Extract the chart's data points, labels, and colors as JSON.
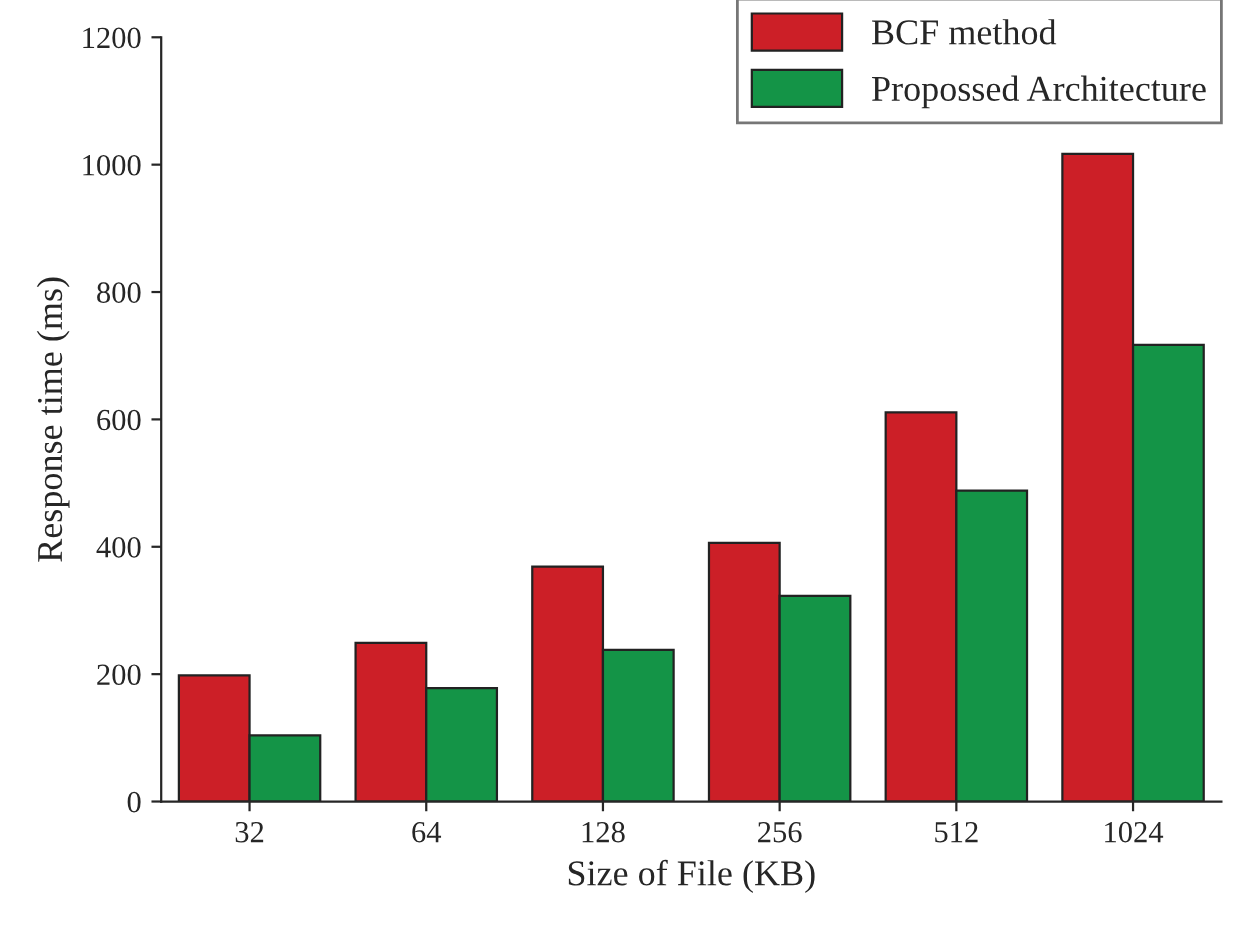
{
  "chart_data": {
    "type": "bar",
    "xlabel": "Size of File (KB)",
    "ylabel": "Response time (ms)",
    "categories": [
      "32",
      "64",
      "128",
      "256",
      "512",
      "1024"
    ],
    "series": [
      {
        "name": "BCF method",
        "color": "#cc1f27",
        "values": [
          198,
          249,
          369,
          406,
          611,
          1017
        ]
      },
      {
        "name": "Propossed Architecture",
        "color": "#149447",
        "values": [
          104,
          178,
          238,
          323,
          488,
          717
        ]
      }
    ],
    "ylim": [
      0,
      1200
    ],
    "yticks": [
      0,
      200,
      400,
      600,
      800,
      1000,
      1200
    ],
    "grid": false,
    "legend": "top right"
  }
}
